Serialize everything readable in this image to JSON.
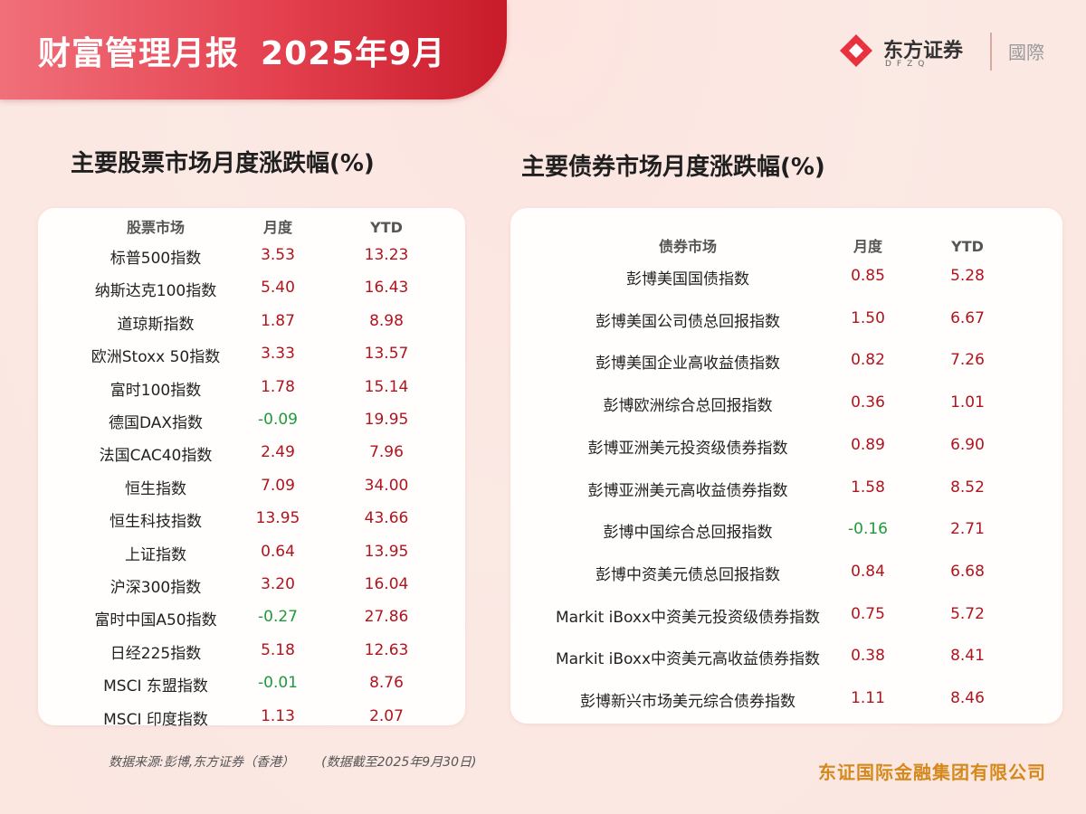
{
  "header": {
    "title": "财富管理月报",
    "period": "2025年9月"
  },
  "brand": {
    "name": "东方证券",
    "sub": "DFZQ",
    "intl": "國際",
    "colors": {
      "accent": "#e8303f"
    }
  },
  "equity": {
    "title": "主要股票市场月度涨跌幅(%)",
    "columns": [
      "股票市场",
      "月度",
      "YTD"
    ],
    "rows": [
      {
        "name": "标普500指数",
        "monthly": "3.53",
        "ytd": "13.23"
      },
      {
        "name": "纳斯达克100指数",
        "monthly": "5.40",
        "ytd": "16.43"
      },
      {
        "name": "道琼斯指数",
        "monthly": "1.87",
        "ytd": "8.98"
      },
      {
        "name": "欧洲Stoxx 50指数",
        "monthly": "3.33",
        "ytd": "13.57"
      },
      {
        "name": "富时100指数",
        "monthly": "1.78",
        "ytd": "15.14"
      },
      {
        "name": "德国DAX指数",
        "monthly": "-0.09",
        "ytd": "19.95"
      },
      {
        "name": "法国CAC40指数",
        "monthly": "2.49",
        "ytd": "7.96"
      },
      {
        "name": "恒生指数",
        "monthly": "7.09",
        "ytd": "34.00"
      },
      {
        "name": "恒生科技指数",
        "monthly": "13.95",
        "ytd": "43.66"
      },
      {
        "name": "上证指数",
        "monthly": "0.64",
        "ytd": "13.95"
      },
      {
        "name": "沪深300指数",
        "monthly": "3.20",
        "ytd": "16.04"
      },
      {
        "name": "富时中国A50指数",
        "monthly": "-0.27",
        "ytd": "27.86"
      },
      {
        "name": "日经225指数",
        "monthly": "5.18",
        "ytd": "12.63"
      },
      {
        "name": "MSCI 东盟指数",
        "monthly": "-0.01",
        "ytd": "8.76"
      },
      {
        "name": "MSCI 印度指数",
        "monthly": "1.13",
        "ytd": "2.07"
      }
    ]
  },
  "bond": {
    "title": "主要债券市场月度涨跌幅(%)",
    "columns": [
      "债券市场",
      "月度",
      "YTD"
    ],
    "rows": [
      {
        "name": "彭博美国国债指数",
        "monthly": "0.85",
        "ytd": "5.28"
      },
      {
        "name": "彭博美国公司债总回报指数",
        "monthly": "1.50",
        "ytd": "6.67"
      },
      {
        "name": "彭博美国企业高收益债指数",
        "monthly": "0.82",
        "ytd": "7.26"
      },
      {
        "name": "彭博欧洲综合总回报指数",
        "monthly": "0.36",
        "ytd": "1.01"
      },
      {
        "name": "彭博亚洲美元投资级债券指数",
        "monthly": "0.89",
        "ytd": "6.90"
      },
      {
        "name": "彭博亚洲美元高收益债券指数",
        "monthly": "1.58",
        "ytd": "8.52"
      },
      {
        "name": "彭博中国综合总回报指数",
        "monthly": "-0.16",
        "ytd": "2.71"
      },
      {
        "name": "彭博中资美元债总回报指数",
        "monthly": "0.84",
        "ytd": "6.68"
      },
      {
        "name": "Markit iBoxx中资美元投资级债券指数",
        "monthly": "0.75",
        "ytd": "5.72"
      },
      {
        "name": "Markit iBoxx中资美元高收益债券指数",
        "monthly": "0.38",
        "ytd": "8.41"
      },
      {
        "name": "彭博新兴市场美元综合债券指数",
        "monthly": "1.11",
        "ytd": "8.46"
      }
    ]
  },
  "footer": {
    "source": "数据来源:彭博,东方证券（香港）",
    "date_note": "(数据截至2025年9月30日)",
    "company": "东证国际金融集团有限公司"
  }
}
